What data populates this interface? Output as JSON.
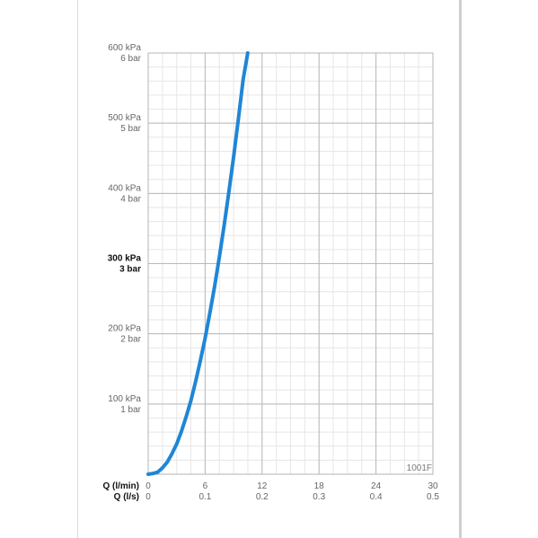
{
  "chart_data": {
    "type": "line",
    "annotation": "1001F",
    "y_axis": {
      "ylim": [
        0,
        600
      ],
      "ticks": [
        {
          "value": 600,
          "kpa": "600 kPa",
          "bar": "6 bar",
          "bold": false
        },
        {
          "value": 500,
          "kpa": "500 kPa",
          "bar": "5 bar",
          "bold": false
        },
        {
          "value": 400,
          "kpa": "400 kPa",
          "bar": "4 bar",
          "bold": false
        },
        {
          "value": 300,
          "kpa": "300 kPa",
          "bar": "3 bar",
          "bold": true
        },
        {
          "value": 200,
          "kpa": "200 kPa",
          "bar": "2 bar",
          "bold": false
        },
        {
          "value": 100,
          "kpa": "100 kPa",
          "bar": "1 bar",
          "bold": false
        }
      ]
    },
    "x_axis": {
      "xlim": [
        0,
        30
      ],
      "row_labels": {
        "lmin": "Q (l/min)",
        "ls": "Q (l/s)"
      },
      "ticks": [
        {
          "value": 0,
          "lmin": "0",
          "ls": "0"
        },
        {
          "value": 6,
          "lmin": "6",
          "ls": "0.1"
        },
        {
          "value": 12,
          "lmin": "12",
          "ls": "0.2"
        },
        {
          "value": 18,
          "lmin": "18",
          "ls": "0.3"
        },
        {
          "value": 24,
          "lmin": "24",
          "ls": "0.4"
        },
        {
          "value": 30,
          "lmin": "30",
          "ls": "0.5"
        }
      ]
    },
    "grid": true,
    "series": [
      {
        "color": "#1f86d6",
        "x": [
          0,
          0.5,
          1,
          1.5,
          2,
          2.5,
          3,
          3.5,
          4,
          4.5,
          5,
          5.5,
          6,
          6.5,
          7,
          7.5,
          8,
          8.5,
          9,
          9.5,
          10,
          10.5,
          11.0
        ],
        "y": [
          0,
          1,
          3,
          9,
          17,
          29,
          43,
          61,
          82,
          105,
          132,
          162,
          194,
          230,
          268,
          310,
          354,
          402,
          452,
          506,
          562,
          601,
          601
        ]
      }
    ]
  }
}
